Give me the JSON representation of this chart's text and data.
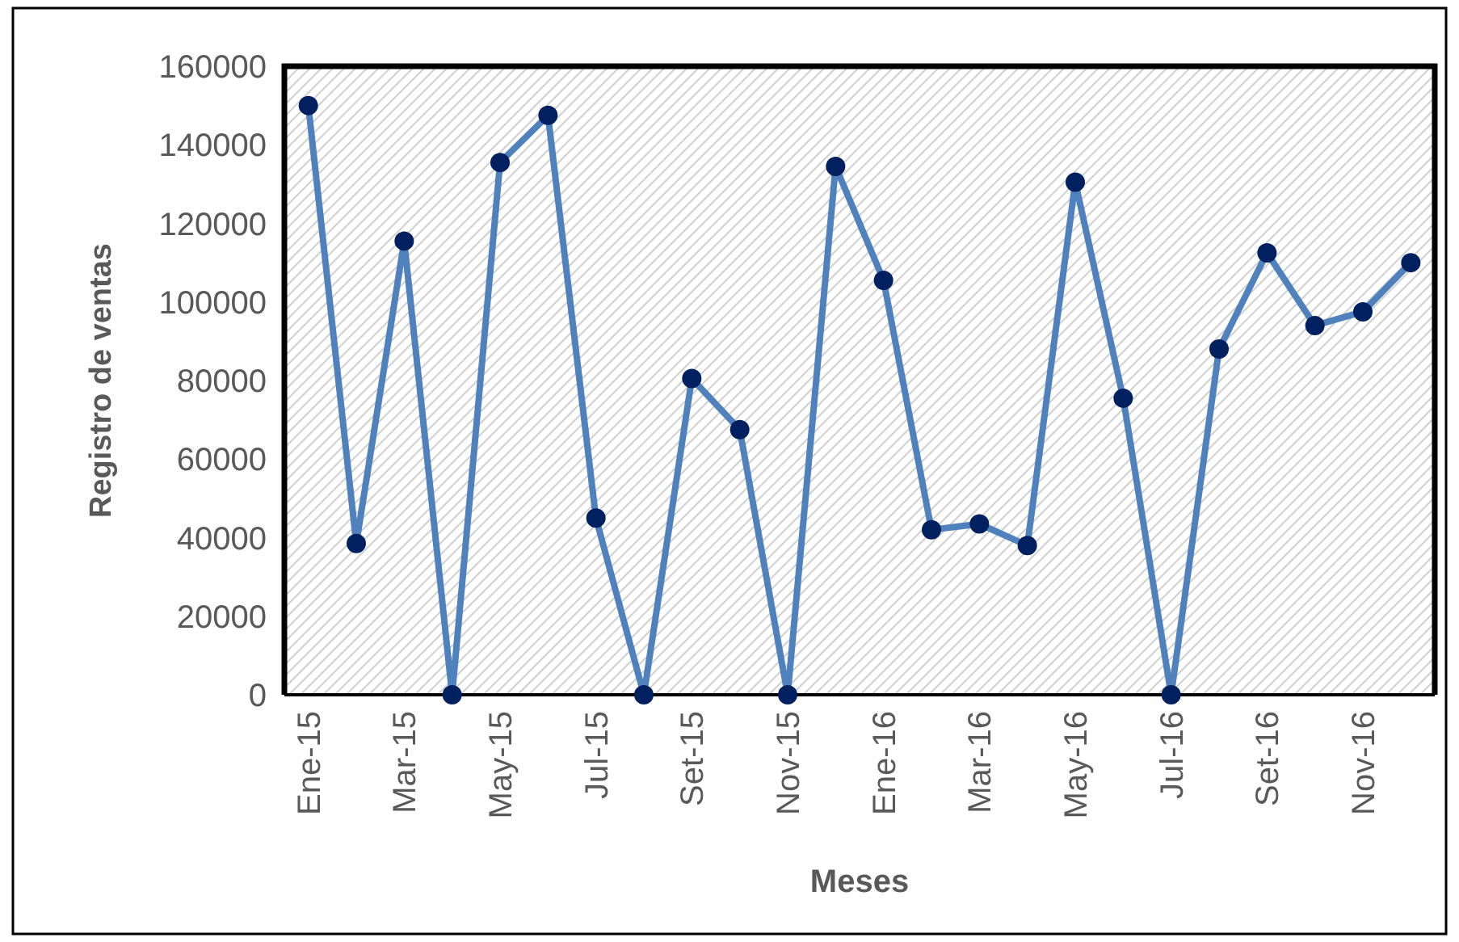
{
  "chart_data": {
    "type": "line",
    "xlabel": "Meses",
    "ylabel": "Registro de ventas",
    "categories": [
      "Ene-15",
      null,
      "Mar-15",
      null,
      "May-15",
      null,
      "Jul-15",
      null,
      "Set-15",
      null,
      "Nov-15",
      null,
      "Ene-16",
      null,
      "Mar-16",
      null,
      "May-16",
      null,
      "Jul-16",
      null,
      "Set-16",
      null,
      "Nov-16",
      null
    ],
    "series": [
      {
        "color": "#4f81bd",
        "values": [
          150000,
          38500,
          115500,
          0,
          135500,
          147500,
          45000,
          0,
          80500,
          67500,
          0,
          134500,
          105500,
          42000,
          43500,
          38000,
          130500,
          75500,
          0,
          88000,
          112500,
          94000,
          97500,
          110000
        ]
      }
    ],
    "ylim": [
      0,
      160000
    ],
    "yticks": [
      0,
      20000,
      40000,
      60000,
      80000,
      100000,
      120000,
      140000,
      160000
    ],
    "marker": "circle",
    "line_style": "solid"
  }
}
